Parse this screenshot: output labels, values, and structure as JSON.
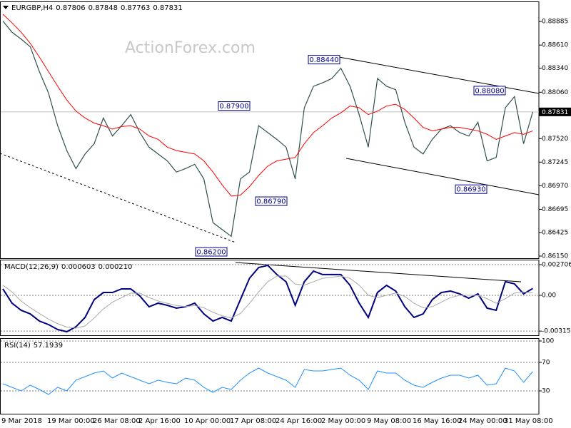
{
  "chart_data": [
    {
      "type": "line",
      "symbol": "EURGBP,H4",
      "ohlc": [
        0.87806,
        0.87848,
        0.87763,
        0.87831
      ],
      "watermark": "ActionForex.com",
      "categories": [
        "9 Mar 2018",
        null,
        null,
        null,
        null,
        "19 Mar 00:00",
        null,
        null,
        null,
        null,
        "26 Mar 08:00",
        null,
        null,
        null,
        null,
        "2 Apr 16:00",
        null,
        null,
        null,
        null,
        "10 Apr 00:00",
        null,
        null,
        null,
        null,
        "17 Apr 08:00",
        null,
        null,
        null,
        null,
        "24 Apr 16:00",
        null,
        null,
        null,
        null,
        "2 May 00:00",
        null,
        null,
        null,
        null,
        "9 May 08:00",
        null,
        null,
        null,
        null,
        "16 May 16:00",
        null,
        null,
        null,
        null,
        "24 May 00:00",
        null,
        null,
        null,
        null,
        "31 May 08:00",
        null,
        null,
        null
      ],
      "series": [
        {
          "color": "#2f4f4f",
          "values": [
            0.8889,
            0.8876,
            0.8868,
            0.8859,
            0.883,
            0.8805,
            0.8767,
            0.8738,
            0.8717,
            0.8734,
            0.8746,
            0.8776,
            0.8755,
            0.8767,
            0.878,
            0.8759,
            0.8742,
            0.8734,
            0.8726,
            0.8713,
            0.8717,
            0.8722,
            0.8705,
            0.8654,
            0.8646,
            0.8638,
            0.8705,
            0.8713,
            0.8767,
            0.8759,
            0.8751,
            0.8742,
            0.8705,
            0.8788,
            0.8813,
            0.8817,
            0.8822,
            0.8834,
            0.8813,
            0.878,
            0.8742,
            0.8822,
            0.8813,
            0.8809,
            0.8771,
            0.8742,
            0.8734,
            0.8751,
            0.8763,
            0.8767,
            0.8759,
            0.8755,
            0.8771,
            0.8726,
            0.873,
            0.8788,
            0.8801,
            0.8746,
            0.87831
          ]
        },
        {
          "color": "#ff0000",
          "values": [
            0.8897,
            0.8887,
            0.8876,
            0.8863,
            0.8847,
            0.883,
            0.8813,
            0.8797,
            0.8784,
            0.8776,
            0.877,
            0.8767,
            0.8763,
            0.8766,
            0.8767,
            0.8763,
            0.8755,
            0.8751,
            0.8742,
            0.8738,
            0.8736,
            0.8734,
            0.8726,
            0.8713,
            0.8698,
            0.8685,
            0.8686,
            0.8696,
            0.8709,
            0.872,
            0.8726,
            0.8728,
            0.873,
            0.8746,
            0.8759,
            0.8767,
            0.8776,
            0.8782,
            0.879,
            0.8788,
            0.878,
            0.8784,
            0.879,
            0.8792,
            0.8786,
            0.8776,
            0.8765,
            0.8761,
            0.8763,
            0.8765,
            0.8765,
            0.8763,
            0.8761,
            0.8757,
            0.8751,
            0.8755,
            0.8759,
            0.8757,
            0.8761
          ]
        }
      ],
      "ylim": [
        0.86125,
        0.89094
      ],
      "yticks": [
        0.88885,
        {
          "value": 0.8861,
          "label": "0.88610"
        },
        {
          "value": 0.8834,
          "label": "0.88340"
        },
        {
          "value": 0.8806,
          "label": "0.88060"
        },
        {
          "value": 0.8752,
          "label": "0.87520"
        },
        0.87245,
        {
          "value": 0.8697,
          "label": "0.86970"
        },
        0.86695,
        0.86425,
        {
          "value": 0.8615,
          "label": "0.86150"
        }
      ],
      "grid": false,
      "annotations": [
        {
          "value": 0.8844,
          "label": "0.88440"
        },
        {
          "value": 0.879,
          "label": "0.87900"
        },
        {
          "value": 0.8679,
          "label": "0.86790"
        },
        {
          "value": 0.862,
          "label": "0.86200"
        },
        {
          "value": 0.8808,
          "label": "0.88080"
        },
        {
          "value": 0.8693,
          "label": "0.86930"
        }
      ]
    },
    {
      "type": "line",
      "title": "MACD(12,26,9)",
      "readings": [
        0.000603,
        {
          "value": 0.00021,
          "label": "0.000210"
        }
      ],
      "series": [
        {
          "color": "#000080",
          "values": [
            0.00057,
            -0.00069,
            -0.00132,
            -0.00164,
            -0.00227,
            -0.00258,
            -0.00302,
            -0.00321,
            -0.00277,
            -0.00195,
            -0.00038,
            0.00025,
            0.00025,
            0.00057,
            0.00057,
            -6e-05,
            -0.00101,
            -0.00069,
            -0.00088,
            -0.00113,
            -0.00101,
            -0.00069,
            -0.00164,
            -0.00227,
            -0.00195,
            -0.00227,
            -0.00038,
            0.00151,
            0.00245,
            0.00264,
            0.00183,
            0.0012,
            -0.00088,
            0.0012,
            0.00214,
            0.00183,
            0.00183,
            0.00183,
            0.00088,
            -0.00069,
            -0.00195,
            0.00025,
            0.00088,
            0.00038,
            -0.00101,
            -0.00195,
            -0.00164,
            -0.00038,
            0.00025,
            0.00038,
            0.00013,
            -0.00025,
            0.00013,
            -0.00113,
            -0.00132,
            0.0012,
            0.00101,
            0.00013,
            0.000603
          ]
        },
        {
          "color": "#a9a9a9",
          "values": [
            0.0009,
            0.0003,
            -0.0005,
            -0.0011,
            -0.0016,
            -0.0021,
            -0.0025,
            -0.0028,
            -0.0029,
            -0.0027,
            -0.002,
            -0.0012,
            -0.0006,
            -0.0002,
            0.0002,
            0.0002,
            -0.0002,
            -0.0005,
            -0.0007,
            -0.0009,
            -0.001,
            -0.0009,
            -0.0011,
            -0.0015,
            -0.0018,
            -0.002,
            -0.0016,
            -0.0007,
            0.0003,
            0.0012,
            0.0017,
            0.0017,
            0.001,
            0.0009,
            0.0012,
            0.0015,
            0.0016,
            0.0017,
            0.0015,
            0.0009,
            0,
            -0.0002,
            0,
            0.0002,
            -0.0001,
            -0.0007,
            -0.0011,
            -0.001,
            -0.0006,
            -0.0002,
            0,
            0,
            0,
            -0.0003,
            -0.0007,
            -0.0003,
            0.0002,
            0.0003,
            0.00021
          ]
        }
      ],
      "ylim": [
        -0.003524,
        0.003084
      ],
      "yticks": [
        0.002706,
        {
          "value": 0,
          "label": "0.00"
        },
        -0.003155
      ],
      "grid": true
    },
    {
      "type": "line",
      "title": "RSI(14)",
      "readings": [
        57.1939
      ],
      "series": [
        {
          "color": "#1e90ff",
          "values": [
            40,
            35,
            30,
            38,
            32,
            25,
            35,
            30,
            45,
            50,
            55,
            58,
            48,
            55,
            50,
            45,
            40,
            45,
            42,
            40,
            48,
            45,
            35,
            28,
            35,
            32,
            45,
            55,
            62,
            55,
            50,
            45,
            35,
            60,
            58,
            58,
            60,
            62,
            52,
            45,
            32,
            58,
            55,
            55,
            45,
            38,
            35,
            42,
            48,
            52,
            52,
            48,
            52,
            38,
            40,
            62,
            58,
            42,
            57.1939
          ]
        }
      ],
      "ylim": [
        -2,
        103
      ],
      "yticks": [
        100,
        70,
        30
      ],
      "grid": true
    }
  ]
}
